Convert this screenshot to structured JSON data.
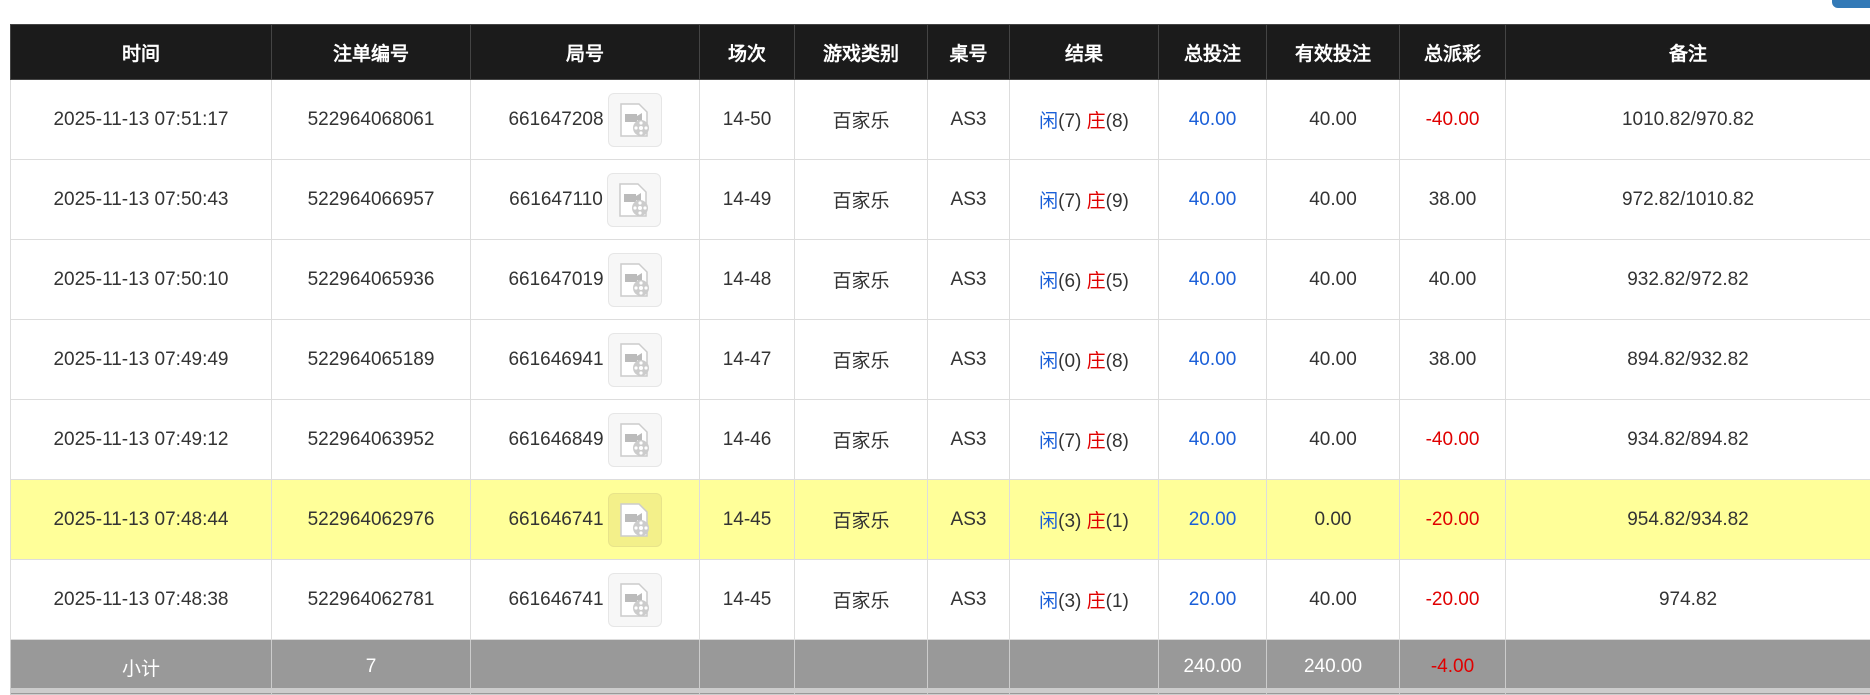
{
  "headers": [
    "时间",
    "注单编号",
    "局号",
    "场次",
    "游戏类别",
    "桌号",
    "结果",
    "总投注",
    "有效投注",
    "总派彩",
    "备注"
  ],
  "rows": [
    {
      "time": "2025-11-13 07:51:17",
      "bet_id": "522964068061",
      "round": "661647208",
      "shoe": "14-50",
      "game": "百家乐",
      "table": "AS3",
      "player_label": "闲",
      "player": "(7)",
      "banker_label": "庄",
      "banker": "(8)",
      "total": "40.00",
      "valid": "40.00",
      "payout": "-40.00",
      "payout_neg": true,
      "note": "1010.82/970.82",
      "highlight": false
    },
    {
      "time": "2025-11-13 07:50:43",
      "bet_id": "522964066957",
      "round": "661647110",
      "shoe": "14-49",
      "game": "百家乐",
      "table": "AS3",
      "player_label": "闲",
      "player": "(7)",
      "banker_label": "庄",
      "banker": "(9)",
      "total": "40.00",
      "valid": "40.00",
      "payout": "38.00",
      "payout_neg": false,
      "note": "972.82/1010.82",
      "highlight": false
    },
    {
      "time": "2025-11-13 07:50:10",
      "bet_id": "522964065936",
      "round": "661647019",
      "shoe": "14-48",
      "game": "百家乐",
      "table": "AS3",
      "player_label": "闲",
      "player": "(6)",
      "banker_label": "庄",
      "banker": "(5)",
      "total": "40.00",
      "valid": "40.00",
      "payout": "40.00",
      "payout_neg": false,
      "note": "932.82/972.82",
      "highlight": false
    },
    {
      "time": "2025-11-13 07:49:49",
      "bet_id": "522964065189",
      "round": "661646941",
      "shoe": "14-47",
      "game": "百家乐",
      "table": "AS3",
      "player_label": "闲",
      "player": "(0)",
      "banker_label": "庄",
      "banker": "(8)",
      "total": "40.00",
      "valid": "40.00",
      "payout": "38.00",
      "payout_neg": false,
      "note": "894.82/932.82",
      "highlight": false
    },
    {
      "time": "2025-11-13 07:49:12",
      "bet_id": "522964063952",
      "round": "661646849",
      "shoe": "14-46",
      "game": "百家乐",
      "table": "AS3",
      "player_label": "闲",
      "player": "(7)",
      "banker_label": "庄",
      "banker": "(8)",
      "total": "40.00",
      "valid": "40.00",
      "payout": "-40.00",
      "payout_neg": true,
      "note": "934.82/894.82",
      "highlight": false
    },
    {
      "time": "2025-11-13 07:48:44",
      "bet_id": "522964062976",
      "round": "661646741",
      "shoe": "14-45",
      "game": "百家乐",
      "table": "AS3",
      "player_label": "闲",
      "player": "(3)",
      "banker_label": "庄",
      "banker": "(1)",
      "total": "20.00",
      "valid": "0.00",
      "payout": "-20.00",
      "payout_neg": true,
      "note": "954.82/934.82",
      "highlight": true
    },
    {
      "time": "2025-11-13 07:48:38",
      "bet_id": "522964062781",
      "round": "661646741",
      "shoe": "14-45",
      "game": "百家乐",
      "table": "AS3",
      "player_label": "闲",
      "player": "(3)",
      "banker_label": "庄",
      "banker": "(1)",
      "total": "20.00",
      "valid": "40.00",
      "payout": "-20.00",
      "payout_neg": true,
      "note": "974.82",
      "highlight": false
    }
  ],
  "subtotal": {
    "label": "小计",
    "count": "7",
    "total": "240.00",
    "valid": "240.00",
    "payout": "-4.00"
  },
  "colors": {
    "header_bg": "#1b1b1b",
    "highlight": "#ffff99",
    "subtotal_bg": "#999999",
    "blue": "#1a5fd8",
    "red": "#e00000"
  }
}
